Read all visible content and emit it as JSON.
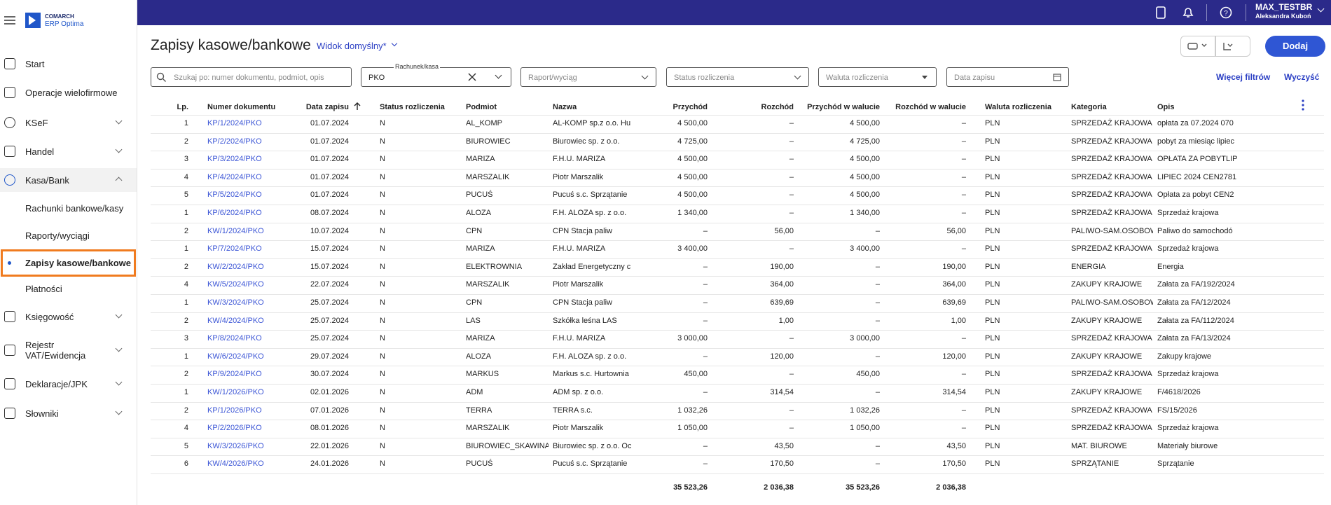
{
  "sidebar": {
    "logo_top": "COMARCH",
    "logo_bottom": "ERP Optima",
    "items": [
      "Start",
      "Operacje wielofirmowe",
      "KSeF",
      "Handel",
      "Kasa/Bank",
      "Rachunki bankowe/kasy",
      "Raporty/wyciągi",
      "Zapisy kasowe/bankowe",
      "Płatności",
      "Księgowość",
      "Rejestr VAT/Ewidencja",
      "Deklaracje/JPK",
      "Słowniki"
    ]
  },
  "topbar": {
    "user": "MAX_TESTBR",
    "person": "Aleksandra Kuboń"
  },
  "header": {
    "title": "Zapisy kasowe/bankowe",
    "view": "Widok domyślny*",
    "add": "Dodaj"
  },
  "filters": {
    "search": "Szukaj po: numer dokumentu, podmiot, opis",
    "account_label": "Rachunek/kasa",
    "account_value": "PKO",
    "report": "Raport/wyciąg",
    "status": "Status rozliczenia",
    "currency": "Waluta rozliczenia",
    "date": "Data zapisu",
    "more": "Więcej filtrów",
    "clear": "Wyczyść"
  },
  "table": {
    "columns": [
      "Lp.",
      "Numer dokumentu",
      "Data zapisu",
      "Status rozliczenia",
      "Podmiot",
      "Nazwa",
      "Przychód",
      "Rozchód",
      "Przychód w walucie",
      "Rozchód w walucie",
      "Waluta rozliczenia",
      "Kategoria",
      "Opis"
    ],
    "rows": [
      [
        "1",
        "KP/1/2024/PKO",
        "01.07.2024",
        "N",
        "AL_KOMP",
        "AL-KOMP sp.z o.o. Hu",
        "4 500,00",
        "–",
        "4 500,00",
        "–",
        "PLN",
        "SPRZEDAŻ KRAJOWA",
        "opłata za 07.2024 070"
      ],
      [
        "2",
        "KP/2/2024/PKO",
        "01.07.2024",
        "N",
        "BIUROWIEC",
        "Biurowiec sp. z o.o.",
        "4 725,00",
        "–",
        "4 725,00",
        "–",
        "PLN",
        "SPRZEDAŻ KRAJOWA",
        "pobyt za miesiąc lipiec"
      ],
      [
        "3",
        "KP/3/2024/PKO",
        "01.07.2024",
        "N",
        "MARIZA",
        "F.H.U. MARIZA",
        "4 500,00",
        "–",
        "4 500,00",
        "–",
        "PLN",
        "SPRZEDAŻ KRAJOWA",
        "OPŁATA ZA POBYTLIP"
      ],
      [
        "4",
        "KP/4/2024/PKO",
        "01.07.2024",
        "N",
        "MARSZALIK",
        "Piotr Marszalik",
        "4 500,00",
        "–",
        "4 500,00",
        "–",
        "PLN",
        "SPRZEDAŻ KRAJOWA",
        "LIPIEC 2024 CEN2781"
      ],
      [
        "5",
        "KP/5/2024/PKO",
        "01.07.2024",
        "N",
        "PUCUŚ",
        "Pucuś s.c. Sprzątanie",
        "4 500,00",
        "–",
        "4 500,00",
        "–",
        "PLN",
        "SPRZEDAŻ KRAJOWA",
        "Opłata za pobyt CEN2"
      ],
      [
        "1",
        "KP/6/2024/PKO",
        "08.07.2024",
        "N",
        "ALOZA",
        "F.H. ALOZA sp. z o.o.",
        "1 340,00",
        "–",
        "1 340,00",
        "–",
        "PLN",
        "SPRZEDAŻ KRAJOWA",
        "Sprzedaż krajowa"
      ],
      [
        "2",
        "KW/1/2024/PKO",
        "10.07.2024",
        "N",
        "CPN",
        "CPN Stacja paliw",
        "–",
        "56,00",
        "–",
        "56,00",
        "PLN",
        "PALIWO-SAM.OSOBOW",
        "Paliwo do samochodó"
      ],
      [
        "1",
        "KP/7/2024/PKO",
        "15.07.2024",
        "N",
        "MARIZA",
        "F.H.U. MARIZA",
        "3 400,00",
        "–",
        "3 400,00",
        "–",
        "PLN",
        "SPRZEDAŻ KRAJOWA",
        "Sprzedaż krajowa"
      ],
      [
        "2",
        "KW/2/2024/PKO",
        "15.07.2024",
        "N",
        "ELEKTROWNIA",
        "Zakład Energetyczny c",
        "–",
        "190,00",
        "–",
        "190,00",
        "PLN",
        "ENERGIA",
        "Energia"
      ],
      [
        "4",
        "KW/5/2024/PKO",
        "22.07.2024",
        "N",
        "MARSZALIK",
        "Piotr Marszalik",
        "–",
        "364,00",
        "–",
        "364,00",
        "PLN",
        "ZAKUPY KRAJOWE",
        "Załata za FA/192/2024"
      ],
      [
        "1",
        "KW/3/2024/PKO",
        "25.07.2024",
        "N",
        "CPN",
        "CPN Stacja paliw",
        "–",
        "639,69",
        "–",
        "639,69",
        "PLN",
        "PALIWO-SAM.OSOBOW",
        "Załata za FA/12/2024"
      ],
      [
        "2",
        "KW/4/2024/PKO",
        "25.07.2024",
        "N",
        "LAS",
        "Szkółka leśna LAS",
        "–",
        "1,00",
        "–",
        "1,00",
        "PLN",
        "ZAKUPY KRAJOWE",
        "Załata za FA/112/2024"
      ],
      [
        "3",
        "KP/8/2024/PKO",
        "25.07.2024",
        "N",
        "MARIZA",
        "F.H.U. MARIZA",
        "3 000,00",
        "–",
        "3 000,00",
        "–",
        "PLN",
        "SPRZEDAŻ KRAJOWA",
        "Załata za FA/13/2024"
      ],
      [
        "1",
        "KW/6/2024/PKO",
        "29.07.2024",
        "N",
        "ALOZA",
        "F.H. ALOZA sp. z o.o.",
        "–",
        "120,00",
        "–",
        "120,00",
        "PLN",
        "ZAKUPY KRAJOWE",
        "Zakupy krajowe"
      ],
      [
        "2",
        "KP/9/2024/PKO",
        "30.07.2024",
        "N",
        "MARKUS",
        "Markus s.c. Hurtownia",
        "450,00",
        "–",
        "450,00",
        "–",
        "PLN",
        "SPRZEDAŻ KRAJOWA",
        "Sprzedaż krajowa"
      ],
      [
        "1",
        "KW/1/2026/PKO",
        "02.01.2026",
        "N",
        "ADM",
        "ADM sp. z o.o.",
        "–",
        "314,54",
        "–",
        "314,54",
        "PLN",
        "ZAKUPY KRAJOWE",
        "F/4618/2026"
      ],
      [
        "2",
        "KP/1/2026/PKO",
        "07.01.2026",
        "N",
        "TERRA",
        "TERRA s.c.",
        "1 032,26",
        "–",
        "1 032,26",
        "–",
        "PLN",
        "SPRZEDAŻ KRAJOWA",
        "FS/15/2026"
      ],
      [
        "4",
        "KP/2/2026/PKO",
        "08.01.2026",
        "N",
        "MARSZALIK",
        "Piotr Marszalik",
        "1 050,00",
        "–",
        "1 050,00",
        "–",
        "PLN",
        "SPRZEDAŻ KRAJOWA",
        "Sprzedaż krajowa"
      ],
      [
        "5",
        "KW/3/2026/PKO",
        "22.01.2026",
        "N",
        "BIUROWIEC_SKAWINA",
        "Biurowiec sp. z o.o. Oc",
        "–",
        "43,50",
        "–",
        "43,50",
        "PLN",
        "MAT. BIUROWE",
        "Materiały biurowe"
      ],
      [
        "6",
        "KW/4/2026/PKO",
        "24.01.2026",
        "N",
        "PUCUŚ",
        "Pucuś s.c. Sprzątanie",
        "–",
        "170,50",
        "–",
        "170,50",
        "PLN",
        "SPRZĄTANIE",
        "Sprzątanie"
      ]
    ],
    "totals": {
      "income": "35 523,26",
      "expense": "2 036,38",
      "income_currency": "35 523,26",
      "expense_currency": "2 036,38"
    }
  }
}
